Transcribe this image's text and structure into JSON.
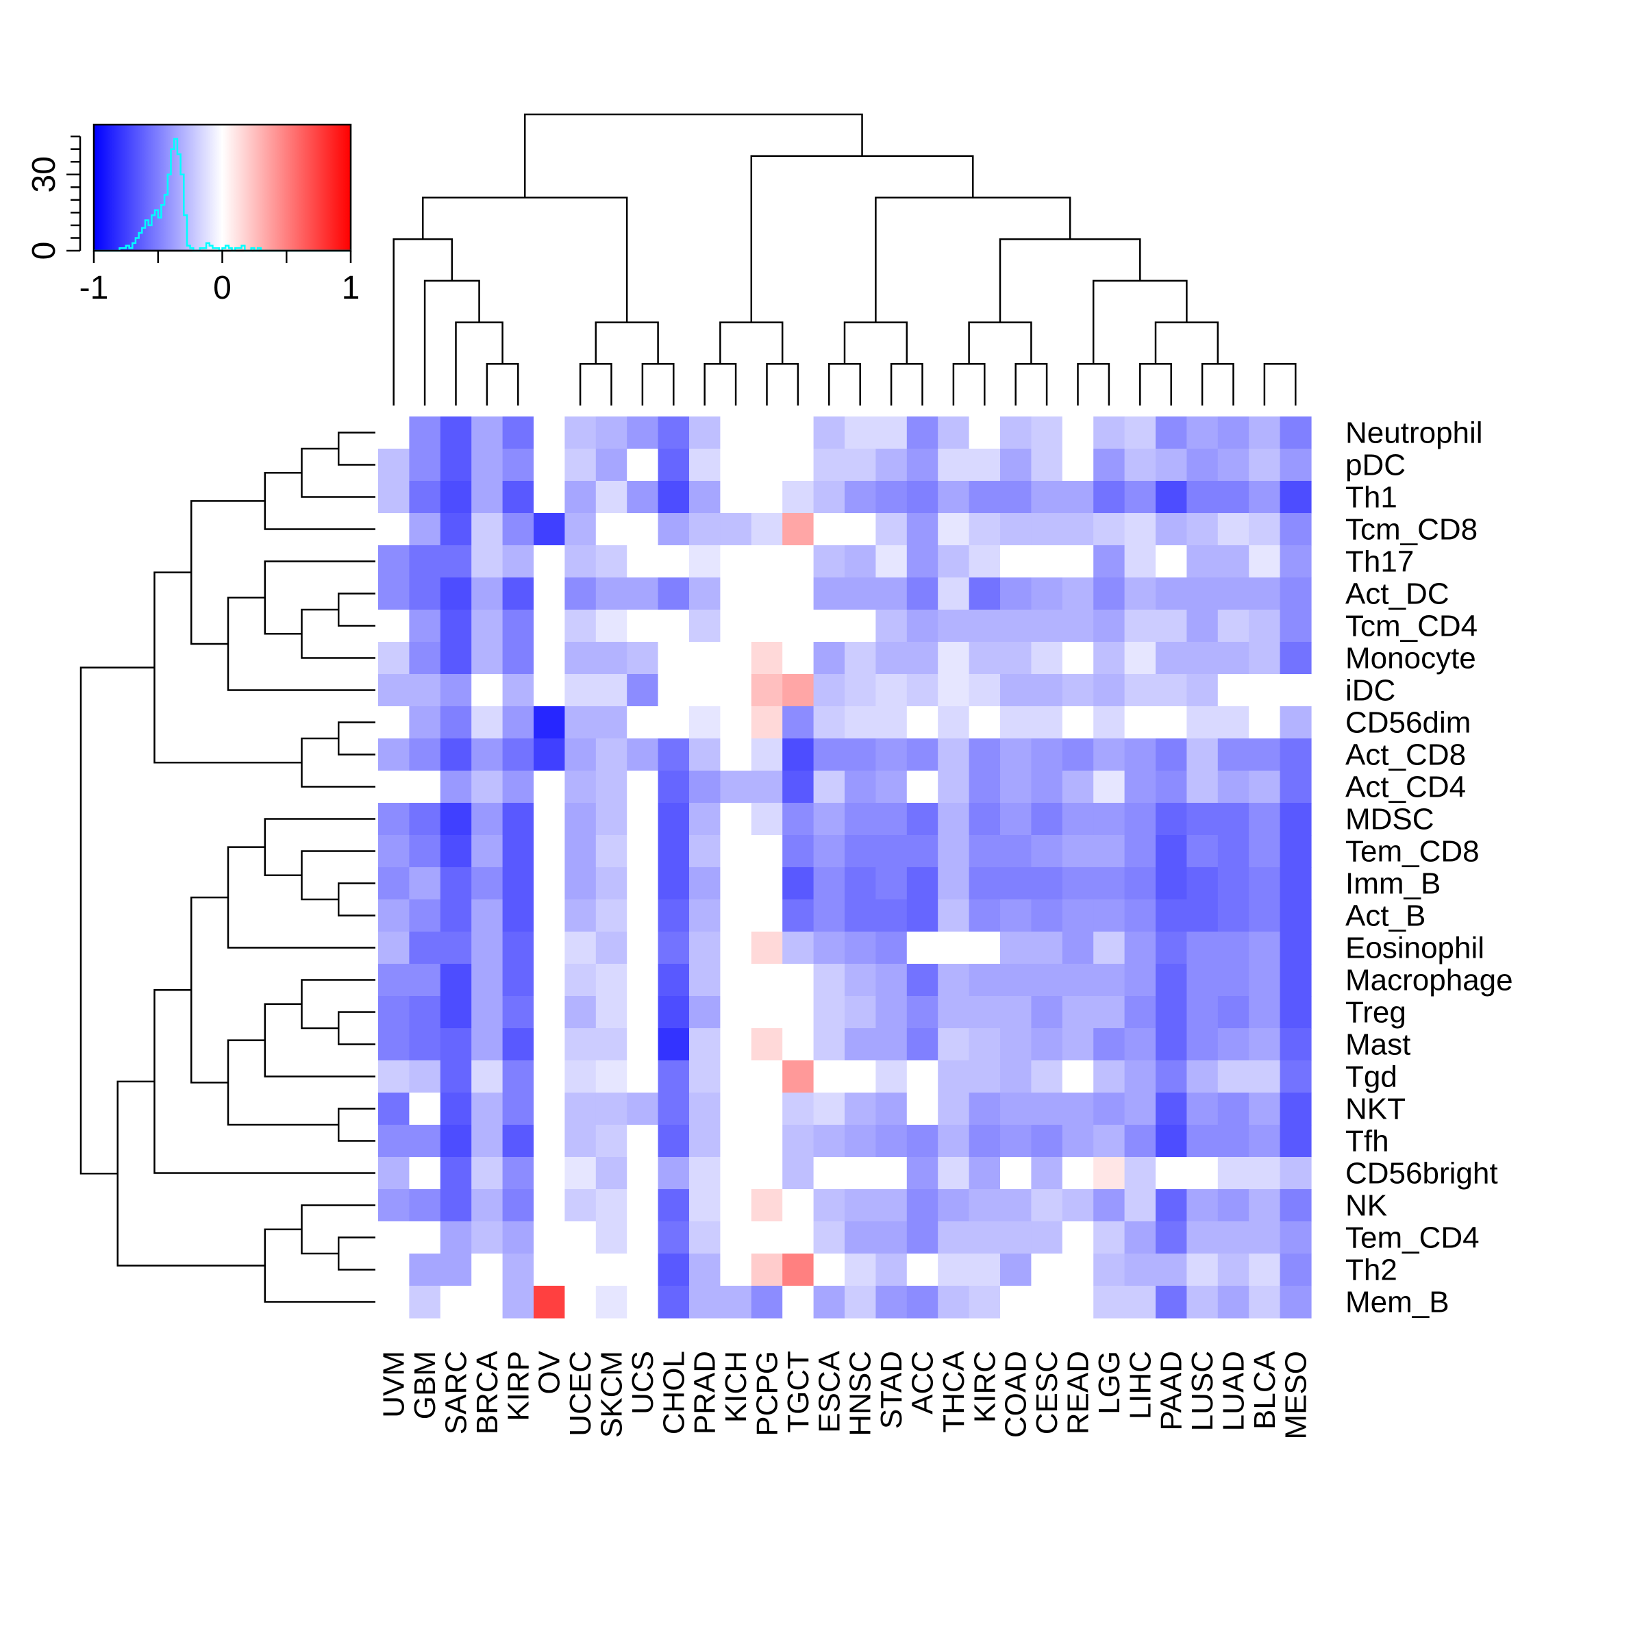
{
  "chart_data": {
    "type": "heatmap",
    "title": "",
    "xlabel": "",
    "ylabel": "",
    "columns": [
      "UVM",
      "GBM",
      "SARC",
      "BRCA",
      "KIRP",
      "OV",
      "UCEC",
      "SKCM",
      "UCS",
      "CHOL",
      "PRAD",
      "KICH",
      "PCPG",
      "TGCT",
      "ESCA",
      "HNSC",
      "STAD",
      "ACC",
      "THCA",
      "KIRC",
      "COAD",
      "CESC",
      "READ",
      "LGG",
      "LIHC",
      "PAAD",
      "LUSC",
      "LUAD",
      "BLCA",
      "MESO"
    ],
    "rows": [
      "Neutrophil",
      "pDC",
      "Th1",
      "Tcm_CD8",
      "Th17",
      "Act_DC",
      "Tcm_CD4",
      "Monocyte",
      "iDC",
      "CD56dim",
      "Act_CD8",
      "Act_CD4",
      "MDSC",
      "Tem_CD8",
      "Imm_B",
      "Act_B",
      "Eosinophil",
      "Macrophage",
      "Treg",
      "Mast",
      "Tgd",
      "NKT",
      "Tfh",
      "CD56bright",
      "NK",
      "Tem_CD4",
      "Th2",
      "Mem_B"
    ],
    "values": [
      [
        0,
        -0.45,
        -0.65,
        -0.35,
        -0.55,
        0,
        -0.25,
        -0.3,
        -0.4,
        -0.55,
        -0.25,
        0,
        0,
        0,
        -0.25,
        -0.15,
        -0.15,
        -0.45,
        -0.25,
        0,
        -0.25,
        -0.2,
        0,
        -0.25,
        -0.2,
        -0.45,
        -0.35,
        -0.4,
        -0.3,
        -0.5
      ],
      [
        -0.25,
        -0.45,
        -0.65,
        -0.35,
        -0.45,
        0,
        -0.2,
        -0.35,
        0,
        -0.6,
        -0.15,
        0,
        0,
        0,
        -0.2,
        -0.2,
        -0.3,
        -0.4,
        -0.15,
        -0.15,
        -0.35,
        -0.2,
        0,
        -0.4,
        -0.25,
        -0.3,
        -0.4,
        -0.35,
        -0.25,
        -0.4
      ],
      [
        -0.25,
        -0.55,
        -0.7,
        -0.35,
        -0.65,
        0,
        -0.35,
        -0.15,
        -0.4,
        -0.7,
        -0.35,
        0,
        0,
        -0.15,
        -0.25,
        -0.4,
        -0.45,
        -0.5,
        -0.35,
        -0.45,
        -0.45,
        -0.35,
        -0.35,
        -0.55,
        -0.45,
        -0.7,
        -0.5,
        -0.5,
        -0.4,
        -0.7
      ],
      [
        0,
        -0.35,
        -0.65,
        -0.2,
        -0.45,
        -0.75,
        -0.3,
        0,
        0,
        -0.35,
        -0.25,
        -0.25,
        -0.15,
        0.35,
        0,
        0,
        -0.2,
        -0.4,
        -0.1,
        -0.2,
        -0.25,
        -0.25,
        -0.25,
        -0.2,
        -0.15,
        -0.3,
        -0.25,
        -0.15,
        -0.2,
        -0.45
      ],
      [
        -0.45,
        -0.55,
        -0.55,
        -0.2,
        -0.3,
        0,
        -0.25,
        -0.2,
        0,
        0,
        -0.1,
        0,
        0,
        0,
        -0.25,
        -0.3,
        -0.1,
        -0.4,
        -0.25,
        -0.15,
        0,
        0,
        0,
        -0.4,
        -0.15,
        0,
        -0.3,
        -0.3,
        -0.1,
        -0.4
      ],
      [
        -0.45,
        -0.55,
        -0.7,
        -0.35,
        -0.65,
        0,
        -0.45,
        -0.35,
        -0.35,
        -0.5,
        -0.3,
        0,
        0,
        0,
        -0.35,
        -0.35,
        -0.35,
        -0.5,
        -0.15,
        -0.55,
        -0.4,
        -0.35,
        -0.3,
        -0.45,
        -0.3,
        -0.35,
        -0.35,
        -0.35,
        -0.35,
        -0.45
      ],
      [
        0,
        -0.4,
        -0.65,
        -0.3,
        -0.5,
        0,
        -0.2,
        -0.1,
        0,
        0,
        -0.2,
        0,
        0,
        0,
        0,
        0,
        -0.25,
        -0.35,
        -0.3,
        -0.3,
        -0.3,
        -0.3,
        -0.3,
        -0.35,
        -0.2,
        -0.2,
        -0.35,
        -0.2,
        -0.25,
        -0.45
      ],
      [
        -0.2,
        -0.45,
        -0.65,
        -0.3,
        -0.5,
        0,
        -0.3,
        -0.3,
        -0.25,
        0,
        0,
        0,
        0.15,
        0,
        -0.35,
        -0.2,
        -0.3,
        -0.3,
        -0.1,
        -0.25,
        -0.25,
        -0.15,
        0,
        -0.25,
        -0.1,
        -0.3,
        -0.3,
        -0.3,
        -0.25,
        -0.55
      ],
      [
        -0.3,
        -0.3,
        -0.4,
        0,
        -0.3,
        0,
        -0.15,
        -0.15,
        -0.45,
        0,
        0,
        0,
        0.25,
        0.35,
        -0.25,
        -0.2,
        -0.15,
        -0.2,
        -0.1,
        -0.15,
        -0.3,
        -0.3,
        -0.25,
        -0.3,
        -0.2,
        -0.2,
        -0.25,
        0,
        0,
        0
      ],
      [
        0,
        -0.35,
        -0.5,
        -0.15,
        -0.4,
        -0.85,
        -0.3,
        -0.3,
        0,
        0,
        -0.1,
        0,
        0.15,
        -0.45,
        -0.2,
        -0.15,
        -0.15,
        0,
        -0.15,
        0,
        -0.15,
        -0.15,
        0,
        -0.15,
        0,
        0,
        -0.15,
        -0.15,
        0,
        -0.3
      ],
      [
        -0.35,
        -0.45,
        -0.65,
        -0.4,
        -0.55,
        -0.75,
        -0.35,
        -0.25,
        -0.35,
        -0.55,
        -0.25,
        0,
        -0.15,
        -0.7,
        -0.45,
        -0.45,
        -0.4,
        -0.45,
        -0.25,
        -0.45,
        -0.35,
        -0.4,
        -0.45,
        -0.35,
        -0.4,
        -0.5,
        -0.25,
        -0.45,
        -0.45,
        -0.55
      ],
      [
        0,
        0,
        -0.4,
        -0.25,
        -0.4,
        0,
        -0.3,
        -0.25,
        0,
        -0.6,
        -0.4,
        -0.3,
        -0.3,
        -0.65,
        -0.2,
        -0.4,
        -0.35,
        0,
        -0.25,
        -0.45,
        -0.35,
        -0.4,
        -0.3,
        -0.1,
        -0.4,
        -0.45,
        -0.25,
        -0.35,
        -0.3,
        -0.55
      ],
      [
        -0.45,
        -0.55,
        -0.75,
        -0.4,
        -0.65,
        0,
        -0.35,
        -0.25,
        0,
        -0.65,
        -0.3,
        0,
        -0.15,
        -0.45,
        -0.35,
        -0.45,
        -0.45,
        -0.55,
        -0.3,
        -0.5,
        -0.4,
        -0.5,
        -0.4,
        -0.4,
        -0.45,
        -0.6,
        -0.55,
        -0.55,
        -0.45,
        -0.65
      ],
      [
        -0.4,
        -0.5,
        -0.7,
        -0.35,
        -0.65,
        0,
        -0.35,
        -0.2,
        0,
        -0.65,
        -0.25,
        0,
        0,
        -0.5,
        -0.4,
        -0.5,
        -0.5,
        -0.5,
        -0.3,
        -0.45,
        -0.45,
        -0.4,
        -0.35,
        -0.35,
        -0.45,
        -0.65,
        -0.5,
        -0.55,
        -0.45,
        -0.65
      ],
      [
        -0.45,
        -0.35,
        -0.6,
        -0.45,
        -0.65,
        0,
        -0.35,
        -0.25,
        0,
        -0.65,
        -0.35,
        0,
        0,
        -0.65,
        -0.45,
        -0.55,
        -0.5,
        -0.6,
        -0.3,
        -0.5,
        -0.5,
        -0.5,
        -0.45,
        -0.45,
        -0.5,
        -0.65,
        -0.6,
        -0.55,
        -0.5,
        -0.65
      ],
      [
        -0.35,
        -0.45,
        -0.6,
        -0.35,
        -0.65,
        0,
        -0.3,
        -0.2,
        0,
        -0.6,
        -0.3,
        0,
        0,
        -0.55,
        -0.45,
        -0.55,
        -0.55,
        -0.6,
        -0.25,
        -0.45,
        -0.4,
        -0.45,
        -0.4,
        -0.4,
        -0.45,
        -0.6,
        -0.6,
        -0.55,
        -0.5,
        -0.65
      ],
      [
        -0.3,
        -0.55,
        -0.55,
        -0.35,
        -0.6,
        0,
        -0.15,
        -0.25,
        0,
        -0.55,
        -0.25,
        0,
        0.15,
        -0.25,
        -0.35,
        -0.4,
        -0.45,
        0,
        0,
        0,
        -0.3,
        -0.3,
        -0.4,
        -0.2,
        -0.4,
        -0.55,
        -0.45,
        -0.45,
        -0.4,
        -0.65
      ],
      [
        -0.45,
        -0.45,
        -0.7,
        -0.35,
        -0.6,
        0,
        -0.2,
        -0.15,
        0,
        -0.65,
        -0.25,
        0,
        0,
        0,
        -0.2,
        -0.3,
        -0.35,
        -0.55,
        -0.3,
        -0.35,
        -0.35,
        -0.35,
        -0.35,
        -0.35,
        -0.4,
        -0.6,
        -0.45,
        -0.45,
        -0.4,
        -0.65
      ],
      [
        -0.5,
        -0.55,
        -0.7,
        -0.35,
        -0.55,
        0,
        -0.3,
        -0.15,
        0,
        -0.7,
        -0.35,
        0,
        0,
        0,
        -0.2,
        -0.25,
        -0.35,
        -0.45,
        -0.3,
        -0.3,
        -0.3,
        -0.4,
        -0.3,
        -0.3,
        -0.45,
        -0.6,
        -0.45,
        -0.5,
        -0.4,
        -0.65
      ],
      [
        -0.5,
        -0.55,
        -0.6,
        -0.35,
        -0.65,
        0,
        -0.2,
        -0.2,
        0,
        -0.8,
        -0.2,
        0,
        0.15,
        0,
        -0.2,
        -0.35,
        -0.35,
        -0.5,
        -0.2,
        -0.25,
        -0.3,
        -0.35,
        -0.3,
        -0.45,
        -0.4,
        -0.6,
        -0.45,
        -0.4,
        -0.35,
        -0.6
      ],
      [
        -0.2,
        -0.25,
        -0.6,
        -0.15,
        -0.5,
        0,
        -0.15,
        -0.1,
        0,
        -0.55,
        -0.2,
        0,
        0,
        0.4,
        0,
        0,
        -0.15,
        0,
        -0.25,
        -0.25,
        -0.3,
        -0.2,
        0,
        -0.25,
        -0.35,
        -0.5,
        -0.3,
        -0.2,
        -0.2,
        -0.55
      ],
      [
        -0.55,
        0,
        -0.65,
        -0.3,
        -0.5,
        0,
        -0.25,
        -0.25,
        -0.3,
        -0.55,
        -0.25,
        0,
        0,
        -0.2,
        -0.15,
        -0.3,
        -0.35,
        0,
        -0.25,
        -0.4,
        -0.35,
        -0.35,
        -0.35,
        -0.4,
        -0.35,
        -0.65,
        -0.4,
        -0.45,
        -0.35,
        -0.65
      ],
      [
        -0.45,
        -0.45,
        -0.7,
        -0.3,
        -0.65,
        0,
        -0.25,
        -0.2,
        0,
        -0.6,
        -0.25,
        0,
        0,
        -0.25,
        -0.3,
        -0.35,
        -0.4,
        -0.45,
        -0.3,
        -0.45,
        -0.4,
        -0.45,
        -0.35,
        -0.3,
        -0.45,
        -0.7,
        -0.45,
        -0.45,
        -0.4,
        -0.65
      ],
      [
        -0.3,
        0,
        -0.6,
        -0.2,
        -0.45,
        0,
        -0.1,
        -0.25,
        0,
        -0.35,
        -0.15,
        0,
        0,
        -0.25,
        0,
        0,
        0,
        -0.4,
        -0.15,
        -0.35,
        0,
        -0.3,
        0,
        0.1,
        -0.2,
        0,
        0,
        -0.15,
        -0.15,
        -0.25
      ],
      [
        -0.4,
        -0.45,
        -0.6,
        -0.3,
        -0.5,
        0,
        -0.2,
        -0.15,
        0,
        -0.6,
        -0.15,
        0,
        0.15,
        0,
        -0.25,
        -0.3,
        -0.3,
        -0.45,
        -0.35,
        -0.3,
        -0.3,
        -0.2,
        -0.25,
        -0.4,
        -0.2,
        -0.6,
        -0.35,
        -0.4,
        -0.3,
        -0.5
      ],
      [
        0,
        0,
        -0.35,
        -0.25,
        -0.35,
        0,
        0,
        -0.15,
        0,
        -0.55,
        -0.2,
        0,
        0,
        0,
        -0.2,
        -0.35,
        -0.35,
        -0.45,
        -0.25,
        -0.25,
        -0.25,
        -0.25,
        0,
        -0.2,
        -0.35,
        -0.55,
        -0.3,
        -0.3,
        -0.3,
        -0.4
      ],
      [
        0,
        -0.35,
        -0.35,
        0,
        -0.3,
        0,
        0,
        0,
        0,
        -0.65,
        -0.3,
        0,
        0.2,
        0.5,
        0,
        -0.15,
        -0.25,
        0,
        -0.15,
        -0.15,
        -0.35,
        0,
        0,
        -0.25,
        -0.3,
        -0.3,
        -0.15,
        -0.25,
        -0.15,
        -0.45
      ],
      [
        0,
        -0.2,
        0,
        0,
        -0.3,
        0.75,
        0,
        -0.1,
        0,
        -0.6,
        -0.3,
        -0.3,
        -0.45,
        0,
        -0.35,
        -0.2,
        -0.4,
        -0.45,
        -0.25,
        -0.2,
        0,
        0,
        0,
        -0.2,
        -0.2,
        -0.55,
        -0.25,
        -0.35,
        -0.2,
        -0.4
      ]
    ],
    "color_scale": {
      "min": -1,
      "mid": 0,
      "max": 1,
      "low_color": "#0000ff",
      "mid_color": "#ffffff",
      "high_color": "#ff0000"
    },
    "color_key": {
      "x_ticks": [
        "-1",
        "0",
        "1"
      ],
      "y_ticks": [
        "0",
        "30"
      ],
      "histogram_color": "#00ffff",
      "histogram": {
        "bin_lo": -0.8,
        "bin_width": 0.025,
        "counts": [
          1,
          1,
          2,
          1,
          3,
          5,
          7,
          9,
          12,
          10,
          14,
          16,
          13,
          18,
          22,
          30,
          40,
          44,
          38,
          30,
          14,
          2,
          1,
          0,
          0,
          1,
          1,
          3,
          2,
          1,
          1,
          0,
          1,
          2,
          1,
          0,
          1,
          1,
          2,
          0,
          0,
          1,
          0,
          1
        ]
      }
    },
    "row_dendrogram": [
      [
        16,
        20
      ],
      [
        23,
        24
      ],
      [
        1,
        21
      ],
      [
        12,
        22
      ],
      [
        8,
        25
      ],
      [
        3,
        26
      ],
      [
        9,
        27
      ],
      [
        10,
        11
      ],
      [
        17,
        18
      ],
      [
        -1,
        31
      ],
      [
        13,
        14
      ],
      [
        -2,
        34
      ],
      [
        15,
        35
      ],
      [
        19,
        36
      ],
      [
        32,
        37
      ],
      [
        -3,
        38
      ],
      [
        -4,
        39
      ],
      [
        5,
        33
      ],
      [
        41,
        42
      ],
      [
        6,
        43
      ],
      [
        7,
        44
      ],
      [
        29,
        30
      ],
      [
        28,
        46
      ],
      [
        2,
        47
      ],
      [
        4,
        48
      ],
      [
        45,
        49
      ],
      [
        40,
        50
      ],
      [
        0,
        51
      ],
      [
        -5,
        52
      ],
      [
        53,
        54
      ],
      [
        55,
        56
      ],
      [
        57,
        58
      ]
    ],
    "col_dendrogram": [
      [
        3,
        4
      ],
      [
        2,
        5
      ],
      [
        1,
        6
      ],
      [
        0,
        7
      ],
      [
        8,
        9
      ],
      [
        10,
        11
      ],
      [
        12,
        13
      ],
      [
        14,
        15
      ],
      [
        16,
        17
      ],
      [
        18,
        19
      ],
      [
        20,
        21
      ],
      [
        22,
        23
      ],
      [
        24,
        25
      ],
      [
        26,
        27
      ],
      [
        28,
        29
      ]
    ]
  }
}
